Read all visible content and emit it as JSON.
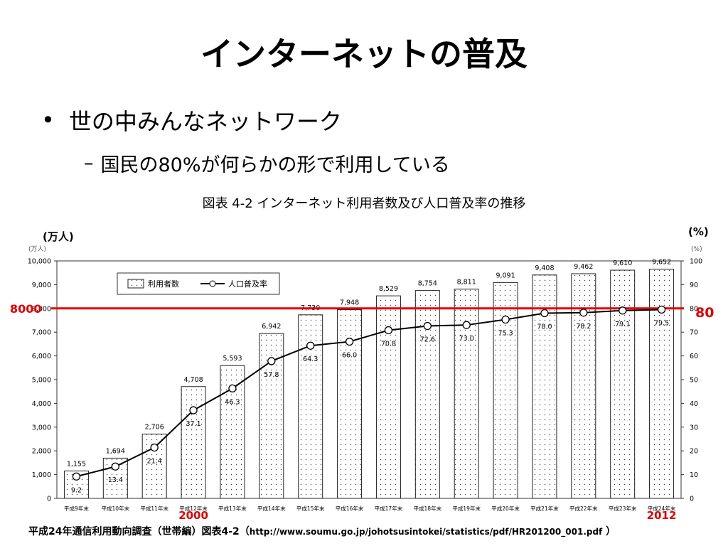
{
  "slide": {
    "title": "インターネットの普及",
    "bullet_marker": "•",
    "bullet": "世の中みんなネットワーク",
    "sub_marker": "–",
    "sub_bullet": "国民の80%が何らかの形で利用している"
  },
  "figure_caption": "図表 4-2 インターネット利用者数及び人口普及率の推移",
  "source": {
    "text": "平成24年通信利用動向調査（世帯編）図表4-2（",
    "url": "http://www.soumu.go.jp/johotsusintokei/statistics/pdf/HR201200_001.pdf",
    "close": " ）"
  },
  "chart_data": {
    "type": "bar",
    "categories": [
      "平成9年末",
      "平成10年末",
      "平成11年末",
      "平成12年末",
      "平成13年末",
      "平成14年末",
      "平成15年末",
      "平成16年末",
      "平成17年末",
      "平成18年末",
      "平成19年末",
      "平成20年末",
      "平成21年末",
      "平成22年末",
      "平成23年末",
      "平成24年末"
    ],
    "series": [
      {
        "name": "利用者数",
        "type": "bar",
        "axis": "left",
        "values": [
          1155,
          1694,
          2706,
          4708,
          5593,
          6942,
          7730,
          7948,
          8529,
          8754,
          8811,
          9091,
          9408,
          9462,
          9610,
          9652
        ]
      },
      {
        "name": "人口普及率",
        "type": "line",
        "axis": "right",
        "values": [
          9.2,
          13.4,
          21.4,
          37.1,
          46.3,
          57.8,
          64.3,
          66.0,
          70.8,
          72.6,
          73.0,
          75.3,
          78.0,
          78.2,
          79.1,
          79.5
        ]
      }
    ],
    "left_unit_overlay": "(万人)",
    "left_unit": "(万人)",
    "right_unit_overlay": "(%)",
    "right_unit": "(%)",
    "ylim_left": [
      0,
      10000
    ],
    "ylim_right": [
      0,
      100
    ],
    "left_ticks": [
      0,
      1000,
      2000,
      3000,
      4000,
      5000,
      6000,
      7000,
      8000,
      9000,
      10000
    ],
    "right_ticks": [
      0,
      10,
      20,
      30,
      40,
      50,
      60,
      70,
      80,
      90,
      100
    ],
    "legend_position": "top-left",
    "grid": false,
    "bar_pattern": "dotted",
    "reference_line": {
      "value": 8000,
      "left_label": "8000",
      "right_label": "80",
      "color": "#e60000"
    },
    "year_annotations": [
      {
        "category_index": 3,
        "label": "2000"
      },
      {
        "category_index": 15,
        "label": "2012"
      }
    ],
    "annotation_color": "#e60000"
  }
}
